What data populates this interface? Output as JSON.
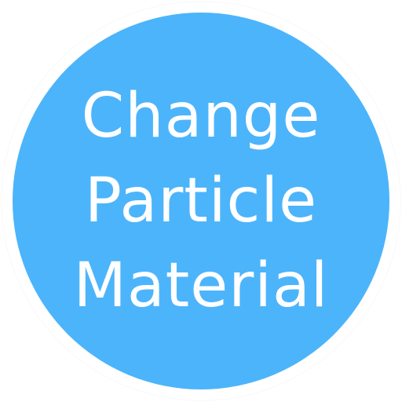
{
  "button": {
    "lines": [
      "Change",
      "Particle",
      "Material"
    ],
    "background_color": "#4cb4fb",
    "text_color": "#ffffff"
  }
}
